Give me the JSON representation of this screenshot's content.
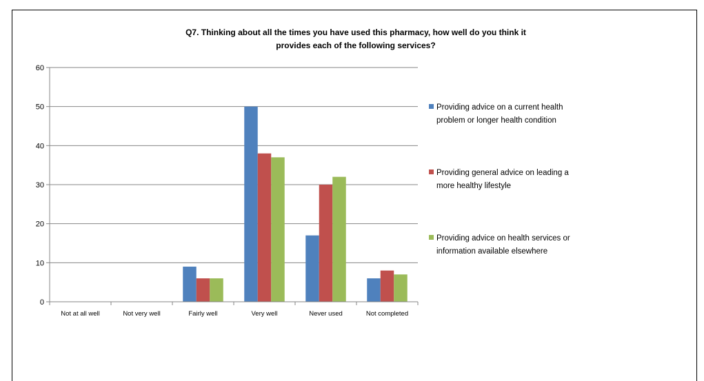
{
  "chart_data": {
    "type": "bar",
    "title_lines": [
      "Q7. Thinking about all the times you have used this pharmacy, how well do you think it",
      "provides each of the following services?"
    ],
    "categories": [
      "Not at all well",
      "Not very well",
      "Fairly well",
      "Very well",
      "Never used",
      "Not  completed"
    ],
    "series": [
      {
        "name": "Providing advice on a current health problem or longer health condition",
        "legend_lines": [
          "Providing advice on a current health",
          "problem or longer health condition"
        ],
        "color": "#4f81bd",
        "values": [
          0,
          0,
          9,
          50,
          17,
          6
        ]
      },
      {
        "name": "Providing general advice on leading a more healthy lifestyle",
        "legend_lines": [
          "Providing general advice on leading a",
          "more healthy lifestyle"
        ],
        "color": "#c0504d",
        "values": [
          0,
          0,
          6,
          38,
          30,
          8
        ]
      },
      {
        "name": "Providing advice on health services or information available elsewhere",
        "legend_lines": [
          "Providing advice on health services or",
          "information available elsewhere"
        ],
        "color": "#9bbb59",
        "values": [
          0,
          0,
          6,
          37,
          32,
          7
        ]
      }
    ],
    "ylim": [
      0,
      60
    ],
    "yticks": [
      0,
      10,
      20,
      30,
      40,
      50,
      60
    ],
    "xlabel": "",
    "ylabel": "",
    "grid": true,
    "legend_position": "right"
  }
}
